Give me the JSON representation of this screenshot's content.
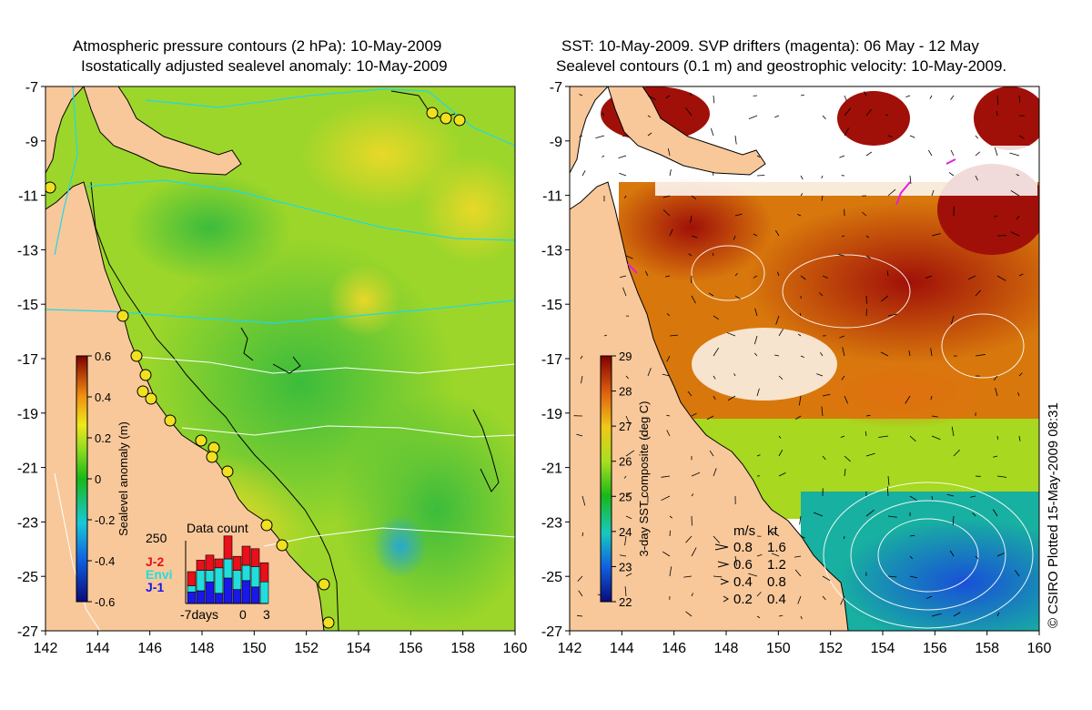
{
  "left_panel": {
    "title_line1": "Atmospheric pressure contours (2 hPa): 10-May-2009",
    "title_line2": "Isostatically adjusted sealevel anomaly: 10-May-2009",
    "x_ticks": [
      "142",
      "144",
      "146",
      "148",
      "150",
      "152",
      "154",
      "156",
      "158",
      "160"
    ],
    "y_ticks": [
      "-7",
      "-9",
      "-11",
      "-13",
      "-15",
      "-17",
      "-19",
      "-21",
      "-23",
      "-25",
      "-27"
    ],
    "colorbar": {
      "label": "Sealevel anomaly (m)",
      "ticks": [
        "0.6",
        "0.4",
        "0.2",
        "0",
        "-0.2",
        "-0.4",
        "-0.6"
      ],
      "range": [
        -0.6,
        0.6
      ]
    },
    "data_count": {
      "title": "Data count",
      "max_label": "250",
      "x_labels": [
        "-7days",
        "0",
        "3"
      ],
      "legend": [
        {
          "label": "J-2",
          "color": "#e8101a"
        },
        {
          "label": "Envi",
          "color": "#22dddd"
        },
        {
          "label": "J-1",
          "color": "#1818e8"
        }
      ],
      "bars": [
        {
          "j1": 0.18,
          "envi": 0.1,
          "j2": 0.22
        },
        {
          "j1": 0.2,
          "envi": 0.32,
          "j2": 0.16
        },
        {
          "j1": 0.34,
          "envi": 0.18,
          "j2": 0.24
        },
        {
          "j1": 0.16,
          "envi": 0.4,
          "j2": 0.14
        },
        {
          "j1": 0.4,
          "envi": 0.3,
          "j2": 0.36
        },
        {
          "j1": 0.22,
          "envi": 0.3,
          "j2": 0.22
        },
        {
          "j1": 0.36,
          "envi": 0.24,
          "j2": 0.3
        },
        {
          "j1": 0.26,
          "envi": 0.32,
          "j2": 0.28
        },
        {
          "j1": 0.0,
          "envi": 0.34,
          "j2": 0.3
        }
      ]
    }
  },
  "right_panel": {
    "title_line1": "SST: 10-May-2009. SVP drifters (magenta): 06 May - 12 May",
    "title_line2": "Sealevel contours (0.1 m) and geostrophic velocity: 10-May-2009.",
    "x_ticks": [
      "142",
      "144",
      "146",
      "148",
      "150",
      "152",
      "154",
      "156",
      "158",
      "160"
    ],
    "y_ticks": [
      "-7",
      "-9",
      "-11",
      "-13",
      "-15",
      "-17",
      "-19",
      "-21",
      "-23",
      "-25",
      "-27"
    ],
    "colorbar": {
      "label": "3-day SST composite (deg C)",
      "ticks": [
        "29",
        "28",
        "27",
        "26",
        "25",
        "24",
        "23",
        "22"
      ],
      "range": [
        22,
        29
      ]
    },
    "velocity_legend": {
      "header_ms": "m/s",
      "header_kt": "kt",
      "rows": [
        {
          "ms": "0.8",
          "kt": "1.6"
        },
        {
          "ms": "0.6",
          "kt": "1.2"
        },
        {
          "ms": "0.4",
          "kt": "0.8"
        },
        {
          "ms": "0.2",
          "kt": "0.4"
        }
      ]
    }
  },
  "credit": "© CSIRO Plotted 15-May-2009 08:31",
  "colors": {
    "land": "#f8c89a",
    "contour_pressure": "#20d8e8",
    "contour_white": "#ffffff",
    "coast": "#000000"
  }
}
